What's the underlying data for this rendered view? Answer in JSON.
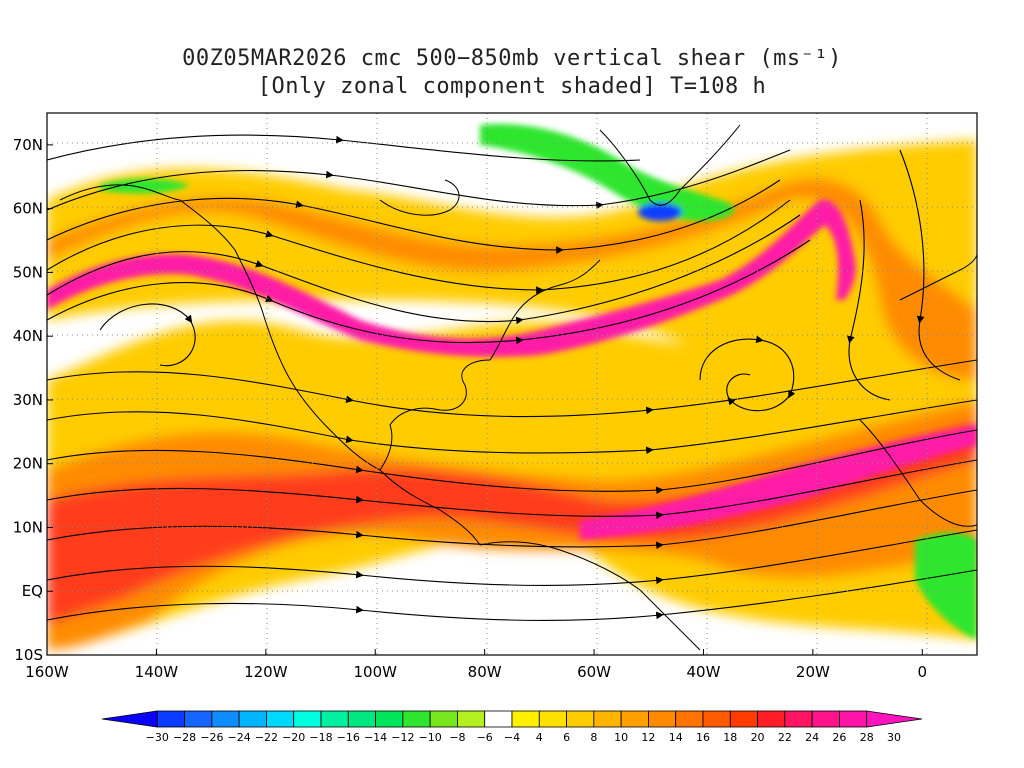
{
  "title": {
    "line1": "00Z05MAR2026 cmc 500−850mb vertical shear (ms⁻¹)",
    "line2": "[Only zonal component shaded] T=108 h"
  },
  "lat_labels": [
    "70N",
    "60N",
    "50N",
    "40N",
    "30N",
    "20N",
    "10N",
    "EQ",
    "10S"
  ],
  "lat_values": [
    70,
    60,
    50,
    40,
    30,
    20,
    10,
    0,
    -10
  ],
  "lon_labels": [
    "160W",
    "140W",
    "120W",
    "100W",
    "80W",
    "60W",
    "40W",
    "20W",
    "0"
  ],
  "lon_values": [
    -160,
    -140,
    -120,
    -100,
    -80,
    -60,
    -40,
    -20,
    0
  ],
  "map_extent": {
    "lon_min": -160,
    "lon_max": 10,
    "lat_min": -10,
    "lat_max": 75
  },
  "colorbar": {
    "labels": [
      "-30",
      "-28",
      "-26",
      "-24",
      "-22",
      "-20",
      "-18",
      "-16",
      "-14",
      "-12",
      "-10",
      "-8",
      "-6",
      "-4",
      "4",
      "6",
      "8",
      "10",
      "12",
      "14",
      "16",
      "18",
      "20",
      "22",
      "24",
      "26",
      "28",
      "30"
    ],
    "colors": [
      "#0a00ff",
      "#0b3cff",
      "#1466ff",
      "#0f8cff",
      "#00b4ff",
      "#00d9ff",
      "#00ffe1",
      "#00f0a0",
      "#00e680",
      "#00e65a",
      "#2ee62e",
      "#78e61e",
      "#b4f01e",
      "#ffffff",
      "#fff000",
      "#ffe100",
      "#ffcc00",
      "#ffb400",
      "#ff9f00",
      "#ff8a00",
      "#ff7300",
      "#ff5a00",
      "#ff3c00",
      "#ff1e28",
      "#ff1464",
      "#ff148c",
      "#ff14a8",
      "#ff14be"
    ]
  },
  "shading": {
    "jet_core_color": "#ff1aa6",
    "strong_color": "#ff3c1e",
    "moderate_color": "#ff8c00",
    "weak_color": "#ffcc00",
    "negative_color": "#2ee62e",
    "negative_strong_color": "#0a3cff"
  }
}
